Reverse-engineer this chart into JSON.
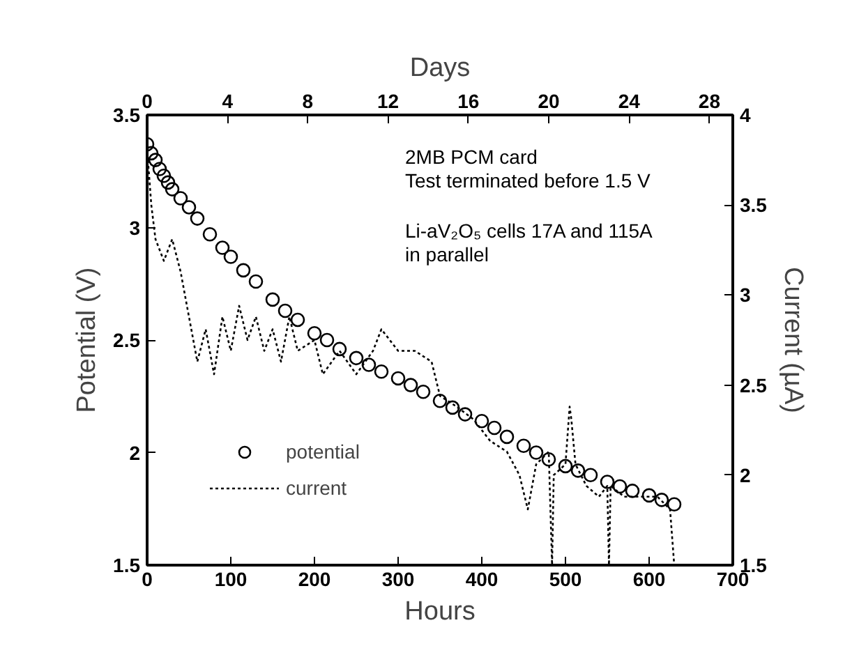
{
  "chart_data": {
    "type": "scatter",
    "xlabel": "Hours",
    "ylabel": "Potential (V)",
    "y2label": "Current (µA)",
    "x2label": "Days",
    "xlim": [
      0,
      700
    ],
    "xticks": [
      0,
      100,
      200,
      300,
      400,
      500,
      600,
      700
    ],
    "x2lim": [
      0,
      29.1667
    ],
    "x2ticks": [
      0,
      4,
      8,
      12,
      16,
      20,
      24,
      28
    ],
    "ylim": [
      1.5,
      3.5
    ],
    "yticks": [
      1.5,
      2,
      2.5,
      3,
      3.5
    ],
    "y2lim": [
      1.5,
      4
    ],
    "y2ticks": [
      1.5,
      2,
      2.5,
      3,
      3.5,
      4
    ],
    "grid": false,
    "legend": "bottom left",
    "annotations": [
      "2MB PCM card",
      "Test terminated before 1.5 V",
      "Li-aV₂O₅ cells 17A and 115A",
      "in parallel"
    ],
    "series": [
      {
        "name": "potential",
        "marker": "circle",
        "color": "#000000",
        "x": [
          0,
          5,
          10,
          15,
          20,
          25,
          30,
          40,
          50,
          60,
          75,
          90,
          100,
          115,
          130,
          150,
          165,
          180,
          200,
          215,
          230,
          250,
          265,
          280,
          300,
          315,
          330,
          350,
          365,
          380,
          400,
          415,
          430,
          450,
          465,
          480,
          500,
          515,
          530,
          550,
          565,
          580,
          600,
          615,
          630
        ],
        "values": [
          3.37,
          3.33,
          3.3,
          3.26,
          3.23,
          3.2,
          3.17,
          3.13,
          3.09,
          3.04,
          2.97,
          2.91,
          2.87,
          2.81,
          2.76,
          2.68,
          2.63,
          2.59,
          2.53,
          2.5,
          2.46,
          2.42,
          2.39,
          2.36,
          2.33,
          2.3,
          2.27,
          2.23,
          2.2,
          2.17,
          2.14,
          2.11,
          2.07,
          2.03,
          2.0,
          1.97,
          1.94,
          1.92,
          1.9,
          1.87,
          1.85,
          1.83,
          1.81,
          1.79,
          1.77
        ]
      },
      {
        "name": "current",
        "type": "line",
        "axis": "y2",
        "line_style": "dotted",
        "color": "#000000",
        "x": [
          0,
          5,
          10,
          20,
          30,
          40,
          50,
          60,
          70,
          80,
          90,
          100,
          110,
          120,
          130,
          140,
          150,
          160,
          170,
          180,
          200,
          210,
          230,
          250,
          270,
          280,
          300,
          320,
          340,
          350,
          370,
          390,
          410,
          430,
          445,
          455,
          465,
          480,
          484,
          486,
          500,
          505,
          507,
          512,
          525,
          540,
          550,
          552,
          554,
          570,
          590,
          610,
          625,
          630
        ],
        "values": [
          3.81,
          3.5,
          3.31,
          3.19,
          3.31,
          3.13,
          2.88,
          2.63,
          2.81,
          2.56,
          2.88,
          2.69,
          2.94,
          2.75,
          2.88,
          2.69,
          2.81,
          2.63,
          2.88,
          2.69,
          2.75,
          2.56,
          2.69,
          2.56,
          2.69,
          2.81,
          2.69,
          2.69,
          2.63,
          2.44,
          2.38,
          2.31,
          2.19,
          2.13,
          2.0,
          1.81,
          2.06,
          2.13,
          1.5,
          2.0,
          2.06,
          2.38,
          2.31,
          2.06,
          1.94,
          1.88,
          1.94,
          1.5,
          1.94,
          1.88,
          1.88,
          1.88,
          1.81,
          1.5
        ]
      }
    ]
  }
}
